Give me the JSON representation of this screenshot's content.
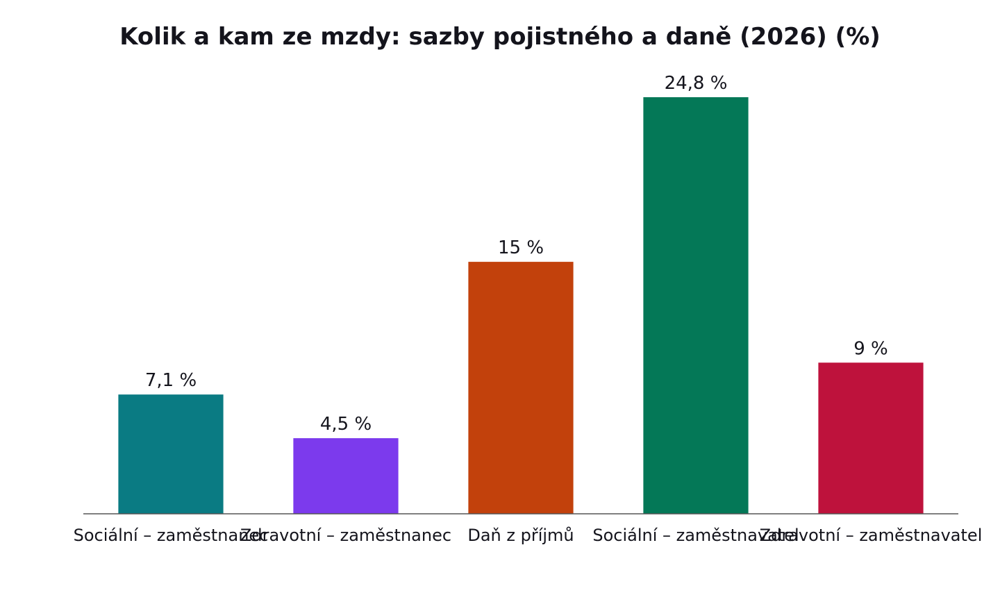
{
  "chart_data": {
    "type": "bar",
    "title": "Kolik a kam ze mzdy: sazby pojistného a daně (2026) (%)",
    "xlabel": "",
    "ylabel": "",
    "categories": [
      "Sociální – zaměstnanec",
      "Zdravotní – zaměstnanec",
      "Daň z příjmů",
      "Sociální – zaměstnavatel",
      "Zdravotní – zaměstnavatel"
    ],
    "values": [
      7.1,
      4.5,
      15,
      24.8,
      9
    ],
    "value_labels": [
      "7,1 %",
      "4,5 %",
      "15 %",
      "24,8 %",
      "9 %"
    ],
    "colors": [
      "#0a7b83",
      "#7c3aed",
      "#c2410c",
      "#047857",
      "#be123c"
    ],
    "ylim": [
      0,
      24.8
    ],
    "grid": false,
    "legend": "none"
  }
}
